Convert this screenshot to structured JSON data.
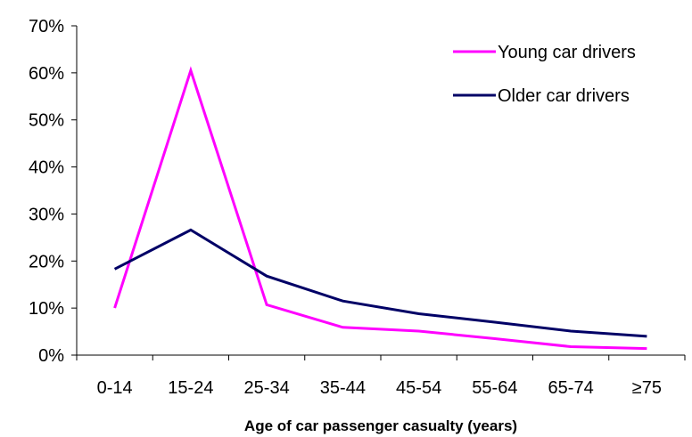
{
  "chart_data": {
    "type": "line",
    "title": "",
    "xlabel": "Age of car passenger casualty (years)",
    "ylabel": "",
    "categories": [
      "0-14",
      "15-24",
      "25-34",
      "35-44",
      "45-54",
      "55-64",
      "65-74",
      "≥75"
    ],
    "ylim": [
      0,
      70
    ],
    "yticks": [
      0,
      10,
      20,
      30,
      40,
      50,
      60,
      70
    ],
    "ytick_labels": [
      "0%",
      "10%",
      "20%",
      "30%",
      "40%",
      "50%",
      "60%",
      "70%"
    ],
    "grid": false,
    "legend_position": "top-right",
    "series": [
      {
        "name": "Young car drivers",
        "color": "#ff00ff",
        "values": [
          10,
          60.5,
          10.7,
          5.9,
          5.1,
          3.5,
          1.8,
          1.4
        ]
      },
      {
        "name": "Older car drivers",
        "color": "#000066",
        "values": [
          18.3,
          26.6,
          16.8,
          11.5,
          8.8,
          7.0,
          5.1,
          4.0
        ]
      }
    ]
  }
}
